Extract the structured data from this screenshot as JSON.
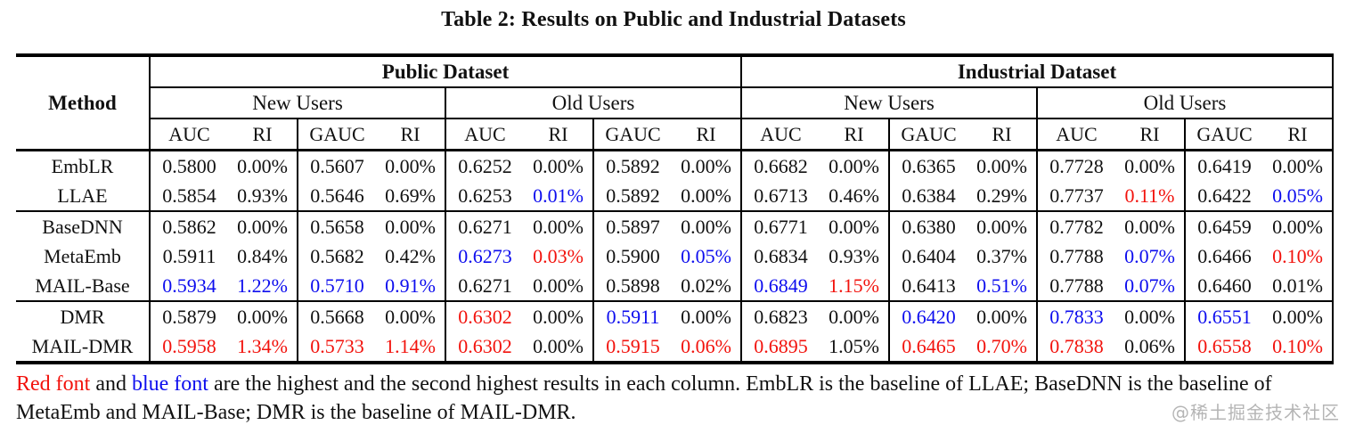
{
  "title": "Table 2: Results on Public and Industrial Datasets",
  "colors": {
    "black": "#111111",
    "red": "#f2120c",
    "blue": "#0d0dee",
    "watermark": "#b5b5b5"
  },
  "table": {
    "method_header": "Method",
    "dataset_groups": [
      "Public Dataset",
      "Industrial Dataset"
    ],
    "user_groups": [
      "New Users",
      "Old Users",
      "New Users",
      "Old Users"
    ],
    "metric_headers": [
      "AUC",
      "RI",
      "GAUC",
      "RI",
      "AUC",
      "RI",
      "GAUC",
      "RI",
      "AUC",
      "RI",
      "GAUC",
      "RI",
      "AUC",
      "RI",
      "GAUC",
      "RI"
    ],
    "rows": [
      {
        "method": "EmbLR",
        "group_start": false,
        "cells": [
          {
            "v": "0.5800",
            "c": "black"
          },
          {
            "v": "0.00%",
            "c": "black"
          },
          {
            "v": "0.5607",
            "c": "black"
          },
          {
            "v": "0.00%",
            "c": "black"
          },
          {
            "v": "0.6252",
            "c": "black"
          },
          {
            "v": "0.00%",
            "c": "black"
          },
          {
            "v": "0.5892",
            "c": "black"
          },
          {
            "v": "0.00%",
            "c": "black"
          },
          {
            "v": "0.6682",
            "c": "black"
          },
          {
            "v": "0.00%",
            "c": "black"
          },
          {
            "v": "0.6365",
            "c": "black"
          },
          {
            "v": "0.00%",
            "c": "black"
          },
          {
            "v": "0.7728",
            "c": "black"
          },
          {
            "v": "0.00%",
            "c": "black"
          },
          {
            "v": "0.6419",
            "c": "black"
          },
          {
            "v": "0.00%",
            "c": "black"
          }
        ]
      },
      {
        "method": "LLAE",
        "group_start": false,
        "cells": [
          {
            "v": "0.5854",
            "c": "black"
          },
          {
            "v": "0.93%",
            "c": "black"
          },
          {
            "v": "0.5646",
            "c": "black"
          },
          {
            "v": "0.69%",
            "c": "black"
          },
          {
            "v": "0.6253",
            "c": "black"
          },
          {
            "v": "0.01%",
            "c": "blue"
          },
          {
            "v": "0.5892",
            "c": "black"
          },
          {
            "v": "0.00%",
            "c": "black"
          },
          {
            "v": "0.6713",
            "c": "black"
          },
          {
            "v": "0.46%",
            "c": "black"
          },
          {
            "v": "0.6384",
            "c": "black"
          },
          {
            "v": "0.29%",
            "c": "black"
          },
          {
            "v": "0.7737",
            "c": "black"
          },
          {
            "v": "0.11%",
            "c": "red"
          },
          {
            "v": "0.6422",
            "c": "black"
          },
          {
            "v": "0.05%",
            "c": "blue"
          }
        ]
      },
      {
        "method": "BaseDNN",
        "group_start": true,
        "cells": [
          {
            "v": "0.5862",
            "c": "black"
          },
          {
            "v": "0.00%",
            "c": "black"
          },
          {
            "v": "0.5658",
            "c": "black"
          },
          {
            "v": "0.00%",
            "c": "black"
          },
          {
            "v": "0.6271",
            "c": "black"
          },
          {
            "v": "0.00%",
            "c": "black"
          },
          {
            "v": "0.5897",
            "c": "black"
          },
          {
            "v": "0.00%",
            "c": "black"
          },
          {
            "v": "0.6771",
            "c": "black"
          },
          {
            "v": "0.00%",
            "c": "black"
          },
          {
            "v": "0.6380",
            "c": "black"
          },
          {
            "v": "0.00%",
            "c": "black"
          },
          {
            "v": "0.7782",
            "c": "black"
          },
          {
            "v": "0.00%",
            "c": "black"
          },
          {
            "v": "0.6459",
            "c": "black"
          },
          {
            "v": "0.00%",
            "c": "black"
          }
        ]
      },
      {
        "method": "MetaEmb",
        "group_start": false,
        "cells": [
          {
            "v": "0.5911",
            "c": "black"
          },
          {
            "v": "0.84%",
            "c": "black"
          },
          {
            "v": "0.5682",
            "c": "black"
          },
          {
            "v": "0.42%",
            "c": "black"
          },
          {
            "v": "0.6273",
            "c": "blue"
          },
          {
            "v": "0.03%",
            "c": "red"
          },
          {
            "v": "0.5900",
            "c": "black"
          },
          {
            "v": "0.05%",
            "c": "blue"
          },
          {
            "v": "0.6834",
            "c": "black"
          },
          {
            "v": "0.93%",
            "c": "black"
          },
          {
            "v": "0.6404",
            "c": "black"
          },
          {
            "v": "0.37%",
            "c": "black"
          },
          {
            "v": "0.7788",
            "c": "black"
          },
          {
            "v": "0.07%",
            "c": "blue"
          },
          {
            "v": "0.6466",
            "c": "black"
          },
          {
            "v": "0.10%",
            "c": "red"
          }
        ]
      },
      {
        "method": "MAIL-Base",
        "group_start": false,
        "cells": [
          {
            "v": "0.5934",
            "c": "blue"
          },
          {
            "v": "1.22%",
            "c": "blue"
          },
          {
            "v": "0.5710",
            "c": "blue"
          },
          {
            "v": "0.91%",
            "c": "blue"
          },
          {
            "v": "0.6271",
            "c": "black"
          },
          {
            "v": "0.00%",
            "c": "black"
          },
          {
            "v": "0.5898",
            "c": "black"
          },
          {
            "v": "0.02%",
            "c": "black"
          },
          {
            "v": "0.6849",
            "c": "blue"
          },
          {
            "v": "1.15%",
            "c": "red"
          },
          {
            "v": "0.6413",
            "c": "black"
          },
          {
            "v": "0.51%",
            "c": "blue"
          },
          {
            "v": "0.7788",
            "c": "black"
          },
          {
            "v": "0.07%",
            "c": "blue"
          },
          {
            "v": "0.6460",
            "c": "black"
          },
          {
            "v": "0.01%",
            "c": "black"
          }
        ]
      },
      {
        "method": "DMR",
        "group_start": true,
        "cells": [
          {
            "v": "0.5879",
            "c": "black"
          },
          {
            "v": "0.00%",
            "c": "black"
          },
          {
            "v": "0.5668",
            "c": "black"
          },
          {
            "v": "0.00%",
            "c": "black"
          },
          {
            "v": "0.6302",
            "c": "red"
          },
          {
            "v": "0.00%",
            "c": "black"
          },
          {
            "v": "0.5911",
            "c": "blue"
          },
          {
            "v": "0.00%",
            "c": "black"
          },
          {
            "v": "0.6823",
            "c": "black"
          },
          {
            "v": "0.00%",
            "c": "black"
          },
          {
            "v": "0.6420",
            "c": "blue"
          },
          {
            "v": "0.00%",
            "c": "black"
          },
          {
            "v": "0.7833",
            "c": "blue"
          },
          {
            "v": "0.00%",
            "c": "black"
          },
          {
            "v": "0.6551",
            "c": "blue"
          },
          {
            "v": "0.00%",
            "c": "black"
          }
        ]
      },
      {
        "method": "MAIL-DMR",
        "group_start": false,
        "cells": [
          {
            "v": "0.5958",
            "c": "red"
          },
          {
            "v": "1.34%",
            "c": "red"
          },
          {
            "v": "0.5733",
            "c": "red"
          },
          {
            "v": "1.14%",
            "c": "red"
          },
          {
            "v": "0.6302",
            "c": "red"
          },
          {
            "v": "0.00%",
            "c": "black"
          },
          {
            "v": "0.5915",
            "c": "red"
          },
          {
            "v": "0.06%",
            "c": "red"
          },
          {
            "v": "0.6895",
            "c": "red"
          },
          {
            "v": "1.05%",
            "c": "black"
          },
          {
            "v": "0.6465",
            "c": "red"
          },
          {
            "v": "0.70%",
            "c": "red"
          },
          {
            "v": "0.7838",
            "c": "red"
          },
          {
            "v": "0.06%",
            "c": "black"
          },
          {
            "v": "0.6558",
            "c": "red"
          },
          {
            "v": "0.10%",
            "c": "red"
          }
        ]
      }
    ]
  },
  "footnote": {
    "segments": [
      {
        "text": "Red font",
        "c": "red"
      },
      {
        "text": " and ",
        "c": "black"
      },
      {
        "text": "blue font",
        "c": "blue"
      },
      {
        "text": " are the highest and the second highest results in each column. EmbLR is the baseline of LLAE; BaseDNN is the baseline of MetaEmb and MAIL-Base; DMR is the baseline of MAIL-DMR.",
        "c": "black"
      }
    ]
  },
  "watermark": "@稀土掘金技术社区"
}
